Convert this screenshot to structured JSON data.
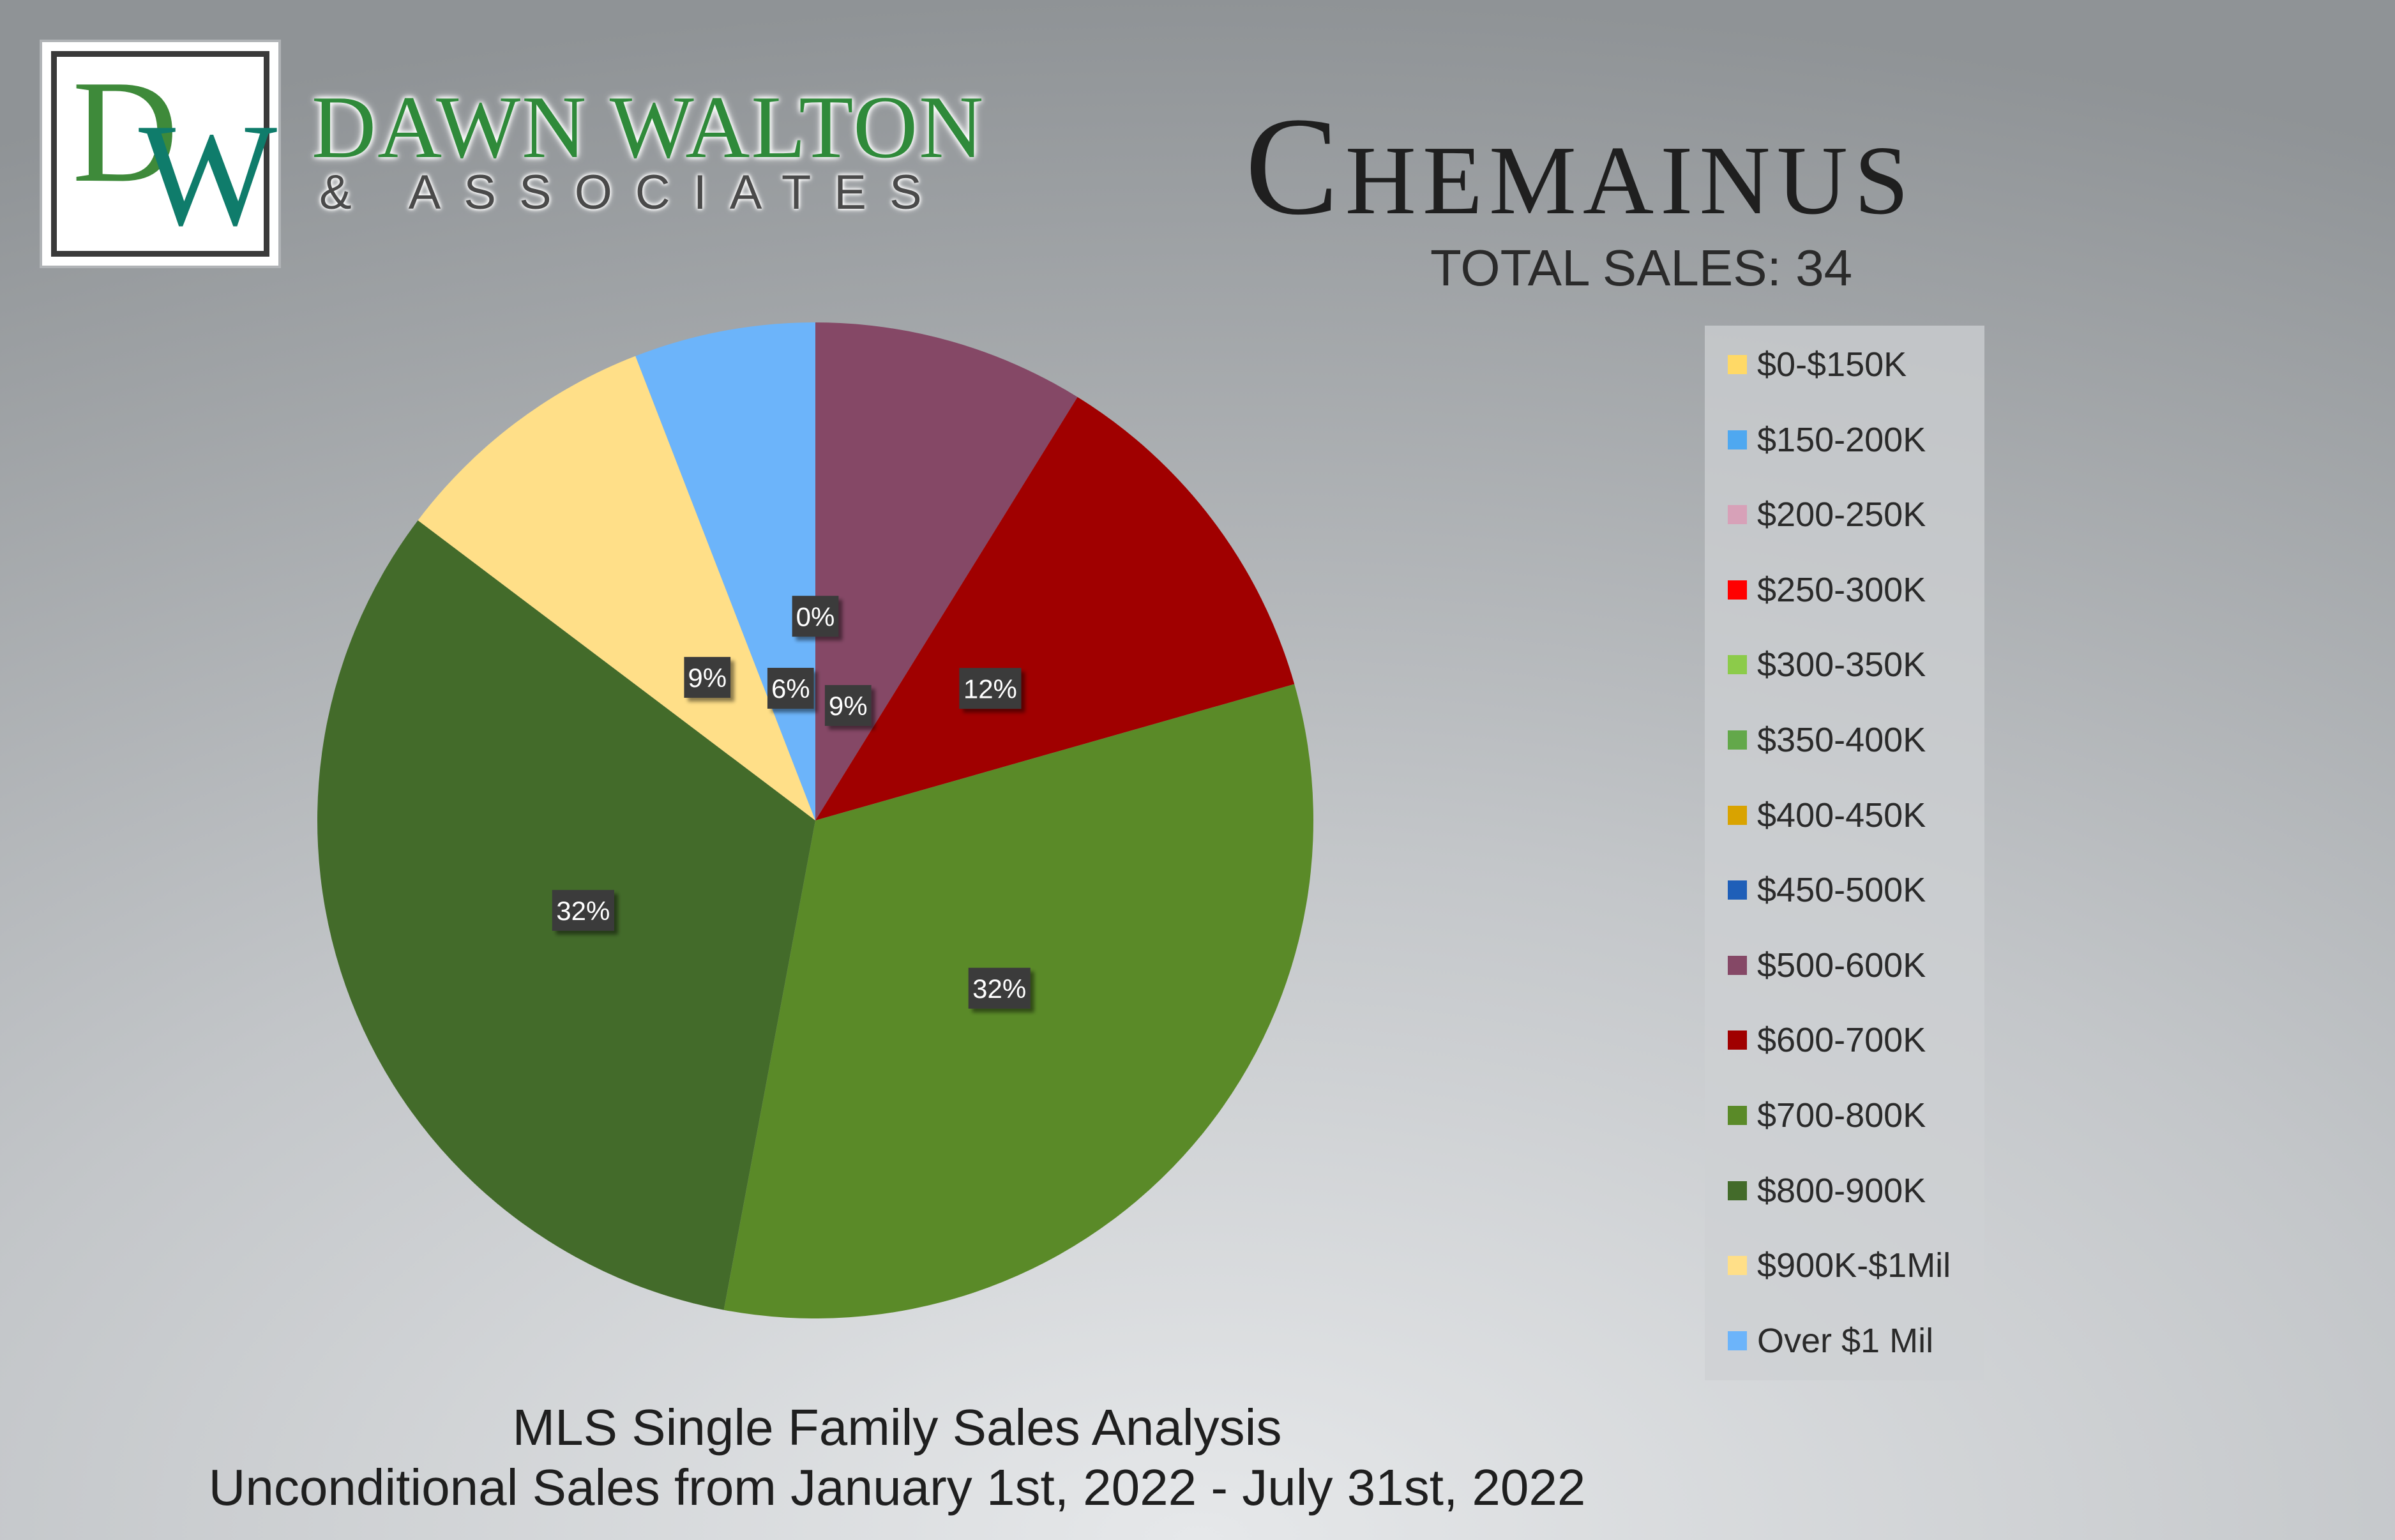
{
  "brand": {
    "logo_letters": "DW",
    "name": "DAWN WALTON",
    "sub": "& ASSOCIATES"
  },
  "header": {
    "city": "Chemainus",
    "total_sales": "TOTAL SALES: 34"
  },
  "footer": {
    "line1": "MLS Single Family Sales Analysis",
    "line2": "Unconditional Sales from January 1st, 2022 - July 31st, 2022"
  },
  "chart_data": {
    "type": "pie",
    "categories": [
      "$0-$150K",
      "$150-200K",
      "$200-250K",
      "$250-300K",
      "$300-350K",
      "$350-400K",
      "$400-450K",
      "$450-500K",
      "$500-600K",
      "$600-700K",
      "$700-800K",
      "$800-900K",
      "$900K-$1Mil",
      "Over $1 Mil"
    ],
    "values": [
      0,
      0,
      0,
      0,
      0,
      0,
      0,
      0,
      3,
      4,
      11,
      11,
      3,
      2
    ],
    "data_labels": [
      "",
      "",
      "",
      "",
      "",
      "",
      "",
      "0%",
      "9%",
      "12%",
      "32%",
      "32%",
      "9%",
      "6%"
    ],
    "colors": [
      "#FFD966",
      "#4FA8F0",
      "#D7A1B8",
      "#FF0000",
      "#8CCB4A",
      "#63A84A",
      "#D9A300",
      "#1F5FB8",
      "#854866",
      "#A00000",
      "#5A8A28",
      "#436B2A",
      "#FFDF88",
      "#6CB4FA"
    ],
    "legend_position": "right"
  }
}
